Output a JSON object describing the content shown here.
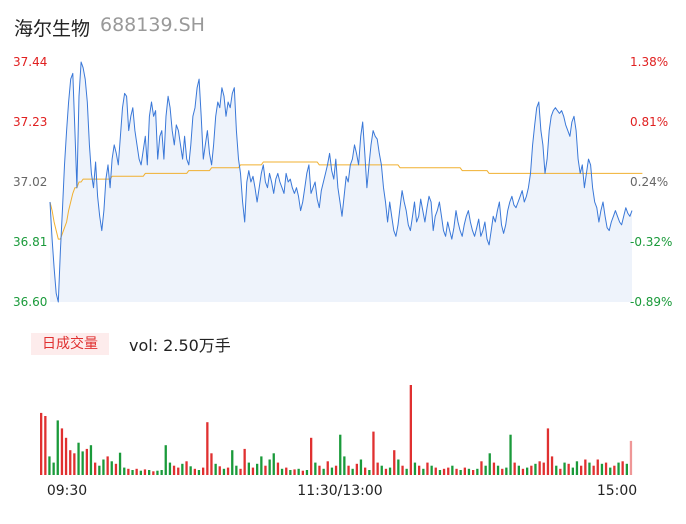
{
  "header": {
    "name": "海尔生物",
    "code": "688139.SH"
  },
  "volume": {
    "tab_label": "日成交量",
    "vol_text": "vol: 2.50万手"
  },
  "chart_data": {
    "type": "line",
    "prev_close": 36.93,
    "ylim": [
      36.6,
      37.44
    ],
    "price_ticks": [
      {
        "label": "37.44",
        "color": "#e02020"
      },
      {
        "label": "37.23",
        "color": "#e02020"
      },
      {
        "label": "37.02",
        "color": "#666666"
      },
      {
        "label": "36.81",
        "color": "#1a9a3a"
      },
      {
        "label": "36.60",
        "color": "#1a9a3a"
      }
    ],
    "pct_ticks": [
      {
        "label": "1.38%",
        "color": "#e02020"
      },
      {
        "label": "0.81%",
        "color": "#e02020"
      },
      {
        "label": "0.24%",
        "color": "#666666"
      },
      {
        "label": "-0.32%",
        "color": "#1a9a3a"
      },
      {
        "label": "-0.89%",
        "color": "#1a9a3a"
      }
    ],
    "x_labels": [
      "09:30",
      "11:30/13:00",
      "15:00"
    ],
    "colors": {
      "price_line": "#3a78d8",
      "avg_line": "#f0b030",
      "up": "#e03030",
      "down": "#1a9a3a",
      "fill": "#eef3fb"
    },
    "series": [
      {
        "key": "price",
        "values": [
          36.95,
          36.82,
          36.72,
          36.63,
          36.6,
          36.78,
          36.92,
          37.08,
          37.2,
          37.3,
          37.38,
          37.4,
          37.2,
          37.0,
          37.32,
          37.44,
          37.42,
          37.38,
          37.3,
          37.15,
          37.05,
          37.0,
          37.09,
          36.97,
          36.9,
          36.85,
          36.92,
          37.03,
          37.08,
          37.0,
          37.1,
          37.15,
          37.12,
          37.08,
          37.18,
          37.28,
          37.33,
          37.32,
          37.2,
          37.25,
          37.28,
          37.2,
          37.15,
          37.1,
          37.08,
          37.13,
          37.18,
          37.08,
          37.25,
          37.3,
          37.25,
          37.27,
          37.1,
          37.18,
          37.2,
          37.1,
          37.25,
          37.32,
          37.28,
          37.2,
          37.15,
          37.22,
          37.2,
          37.15,
          37.1,
          37.18,
          37.1,
          37.08,
          37.15,
          37.25,
          37.28,
          37.35,
          37.38,
          37.25,
          37.1,
          37.15,
          37.2,
          37.12,
          37.08,
          37.15,
          37.25,
          37.3,
          37.28,
          37.35,
          37.32,
          37.25,
          37.3,
          37.28,
          37.33,
          37.35,
          37.2,
          37.1,
          37.05,
          36.95,
          36.88,
          37.02,
          37.06,
          37.02,
          37.04,
          37.0,
          36.95,
          37.0,
          37.05,
          37.08,
          37.02,
          37.0,
          37.05,
          37.02,
          36.98,
          37.03,
          37.05,
          37.02,
          37.0,
          36.98,
          37.05,
          37.02,
          37.03,
          37.0,
          36.98,
          37.0,
          36.97,
          36.92,
          36.95,
          37.0,
          37.05,
          37.08,
          36.98,
          37.0,
          37.02,
          36.96,
          36.93,
          36.99,
          37.02,
          37.05,
          37.08,
          37.12,
          37.06,
          37.03,
          37.1,
          37.0,
          36.95,
          36.9,
          36.97,
          37.04,
          37.02,
          37.08,
          37.1,
          37.15,
          37.12,
          37.08,
          37.18,
          37.23,
          37.12,
          37.0,
          37.08,
          37.15,
          37.2,
          37.18,
          37.17,
          37.12,
          37.08,
          37.0,
          36.95,
          36.88,
          36.95,
          36.9,
          36.85,
          36.83,
          36.87,
          36.93,
          36.99,
          36.95,
          36.92,
          36.87,
          36.85,
          36.9,
          36.95,
          36.88,
          36.9,
          36.96,
          36.92,
          36.88,
          36.93,
          36.97,
          36.95,
          36.85,
          36.9,
          36.92,
          36.95,
          36.9,
          36.85,
          36.83,
          36.88,
          36.85,
          36.82,
          36.86,
          36.92,
          36.88,
          36.85,
          36.83,
          36.87,
          36.9,
          36.92,
          36.88,
          36.85,
          36.83,
          36.86,
          36.89,
          36.83,
          36.85,
          36.88,
          36.82,
          36.8,
          36.85,
          36.9,
          36.88,
          36.92,
          36.95,
          36.87,
          36.84,
          36.87,
          36.92,
          36.95,
          36.97,
          36.94,
          36.93,
          36.95,
          36.97,
          36.99,
          36.95,
          36.97,
          37.0,
          37.05,
          37.15,
          37.22,
          37.28,
          37.3,
          37.2,
          37.15,
          37.05,
          37.1,
          37.2,
          37.25,
          37.27,
          37.28,
          37.27,
          37.26,
          37.27,
          37.25,
          37.22,
          37.2,
          37.18,
          37.23,
          37.25,
          37.2,
          37.1,
          37.05,
          37.08,
          37.0,
          37.05,
          37.1,
          37.08,
          37.0,
          36.95,
          36.93,
          36.88,
          36.92,
          36.95,
          36.9,
          36.86,
          36.85,
          36.88,
          36.9,
          36.92,
          36.9,
          36.88,
          36.87,
          36.9,
          36.93,
          36.91,
          36.9,
          36.92
        ]
      },
      {
        "key": "avg",
        "values": [
          36.95,
          36.92,
          36.88,
          36.85,
          36.82,
          36.82,
          36.84,
          36.86,
          36.88,
          36.92,
          36.95,
          36.98,
          37.0,
          37.0,
          37.02,
          37.02,
          37.03,
          37.03,
          37.03,
          37.03,
          37.03,
          37.03,
          37.03,
          37.03,
          37.03,
          37.03,
          37.03,
          37.03,
          37.03,
          37.03,
          37.04,
          37.04,
          37.04,
          37.04,
          37.04,
          37.04,
          37.04,
          37.04,
          37.04,
          37.04,
          37.04,
          37.04,
          37.04,
          37.04,
          37.04,
          37.04,
          37.05,
          37.05,
          37.05,
          37.05,
          37.05,
          37.05,
          37.05,
          37.05,
          37.05,
          37.05,
          37.05,
          37.05,
          37.05,
          37.05,
          37.05,
          37.05,
          37.05,
          37.05,
          37.05,
          37.05,
          37.05,
          37.06,
          37.06,
          37.06,
          37.06,
          37.06,
          37.06,
          37.06,
          37.06,
          37.06,
          37.06,
          37.06,
          37.07,
          37.07,
          37.07,
          37.07,
          37.07,
          37.07,
          37.07,
          37.07,
          37.07,
          37.07,
          37.07,
          37.07,
          37.07,
          37.07,
          37.08,
          37.08,
          37.08,
          37.08,
          37.08,
          37.08,
          37.08,
          37.08,
          37.08,
          37.08,
          37.08,
          37.09,
          37.09,
          37.09,
          37.09,
          37.09,
          37.09,
          37.09,
          37.09,
          37.09,
          37.09,
          37.09,
          37.09,
          37.09,
          37.09,
          37.09,
          37.09,
          37.09,
          37.09,
          37.09,
          37.09,
          37.09,
          37.09,
          37.09,
          37.09,
          37.09,
          37.09,
          37.09,
          37.08,
          37.08,
          37.08,
          37.08,
          37.08,
          37.08,
          37.08,
          37.08,
          37.08,
          37.08,
          37.08,
          37.08,
          37.08,
          37.08,
          37.08,
          37.08,
          37.08,
          37.08,
          37.08,
          37.08,
          37.08,
          37.08,
          37.08,
          37.08,
          37.08,
          37.08,
          37.08,
          37.08,
          37.08,
          37.08,
          37.08,
          37.08,
          37.08,
          37.08,
          37.08,
          37.08,
          37.08,
          37.08,
          37.08,
          37.07,
          37.07,
          37.07,
          37.07,
          37.07,
          37.07,
          37.07,
          37.07,
          37.07,
          37.07,
          37.07,
          37.07,
          37.07,
          37.07,
          37.07,
          37.07,
          37.07,
          37.07,
          37.07,
          37.07,
          37.07,
          37.07,
          37.07,
          37.07,
          37.07,
          37.07,
          37.07,
          37.07,
          37.07,
          37.07,
          37.06,
          37.06,
          37.06,
          37.06,
          37.06,
          37.06,
          37.06,
          37.06,
          37.06,
          37.06,
          37.06,
          37.06,
          37.06,
          37.05,
          37.05,
          37.05,
          37.05,
          37.05,
          37.05,
          37.05,
          37.05,
          37.05,
          37.05,
          37.05,
          37.05,
          37.05,
          37.05,
          37.05,
          37.05,
          37.05,
          37.05,
          37.05,
          37.05,
          37.05,
          37.05,
          37.05,
          37.05,
          37.05,
          37.05,
          37.05,
          37.05,
          37.05,
          37.05,
          37.05,
          37.05,
          37.05,
          37.05,
          37.05,
          37.05,
          37.05,
          37.05,
          37.05,
          37.05,
          37.05,
          37.05,
          37.05,
          37.05,
          37.05,
          37.05,
          37.05,
          37.05,
          37.05,
          37.05,
          37.05,
          37.05,
          37.05,
          37.05,
          37.05,
          37.05,
          37.05,
          37.05,
          37.05,
          37.05,
          37.05,
          37.05,
          37.05,
          37.05,
          37.05,
          37.05,
          37.05,
          37.05,
          37.05,
          37.05,
          37.05,
          37.05,
          37.05,
          37.05,
          37.05
        ]
      }
    ],
    "volume_bars": [
      {
        "v": 100,
        "d": "up"
      },
      {
        "v": 95,
        "d": "up"
      },
      {
        "v": 30,
        "d": "down"
      },
      {
        "v": 20,
        "d": "down"
      },
      {
        "v": 88,
        "d": "down"
      },
      {
        "v": 75,
        "d": "up"
      },
      {
        "v": 60,
        "d": "up"
      },
      {
        "v": 40,
        "d": "up"
      },
      {
        "v": 35,
        "d": "up"
      },
      {
        "v": 52,
        "d": "down"
      },
      {
        "v": 38,
        "d": "down"
      },
      {
        "v": 42,
        "d": "up"
      },
      {
        "v": 48,
        "d": "down"
      },
      {
        "v": 20,
        "d": "up"
      },
      {
        "v": 15,
        "d": "down"
      },
      {
        "v": 25,
        "d": "down"
      },
      {
        "v": 30,
        "d": "up"
      },
      {
        "v": 22,
        "d": "down"
      },
      {
        "v": 18,
        "d": "up"
      },
      {
        "v": 36,
        "d": "down"
      },
      {
        "v": 12,
        "d": "down"
      },
      {
        "v": 10,
        "d": "up"
      },
      {
        "v": 8,
        "d": "down"
      },
      {
        "v": 10,
        "d": "up"
      },
      {
        "v": 7,
        "d": "down"
      },
      {
        "v": 9,
        "d": "up"
      },
      {
        "v": 8,
        "d": "down"
      },
      {
        "v": 6,
        "d": "up"
      },
      {
        "v": 7,
        "d": "down"
      },
      {
        "v": 8,
        "d": "down"
      },
      {
        "v": 48,
        "d": "down"
      },
      {
        "v": 20,
        "d": "down"
      },
      {
        "v": 15,
        "d": "up"
      },
      {
        "v": 12,
        "d": "up"
      },
      {
        "v": 18,
        "d": "down"
      },
      {
        "v": 22,
        "d": "up"
      },
      {
        "v": 14,
        "d": "down"
      },
      {
        "v": 10,
        "d": "up"
      },
      {
        "v": 8,
        "d": "down"
      },
      {
        "v": 12,
        "d": "up"
      },
      {
        "v": 85,
        "d": "up"
      },
      {
        "v": 35,
        "d": "up"
      },
      {
        "v": 18,
        "d": "down"
      },
      {
        "v": 14,
        "d": "up"
      },
      {
        "v": 10,
        "d": "down"
      },
      {
        "v": 12,
        "d": "up"
      },
      {
        "v": 40,
        "d": "down"
      },
      {
        "v": 15,
        "d": "down"
      },
      {
        "v": 10,
        "d": "up"
      },
      {
        "v": 42,
        "d": "up"
      },
      {
        "v": 20,
        "d": "down"
      },
      {
        "v": 12,
        "d": "up"
      },
      {
        "v": 18,
        "d": "down"
      },
      {
        "v": 30,
        "d": "down"
      },
      {
        "v": 15,
        "d": "up"
      },
      {
        "v": 25,
        "d": "down"
      },
      {
        "v": 35,
        "d": "down"
      },
      {
        "v": 20,
        "d": "up"
      },
      {
        "v": 10,
        "d": "down"
      },
      {
        "v": 12,
        "d": "up"
      },
      {
        "v": 8,
        "d": "down"
      },
      {
        "v": 9,
        "d": "up"
      },
      {
        "v": 10,
        "d": "down"
      },
      {
        "v": 7,
        "d": "up"
      },
      {
        "v": 8,
        "d": "down"
      },
      {
        "v": 60,
        "d": "up"
      },
      {
        "v": 20,
        "d": "down"
      },
      {
        "v": 15,
        "d": "up"
      },
      {
        "v": 10,
        "d": "down"
      },
      {
        "v": 22,
        "d": "up"
      },
      {
        "v": 12,
        "d": "down"
      },
      {
        "v": 15,
        "d": "up"
      },
      {
        "v": 65,
        "d": "down"
      },
      {
        "v": 30,
        "d": "down"
      },
      {
        "v": 15,
        "d": "up"
      },
      {
        "v": 10,
        "d": "down"
      },
      {
        "v": 18,
        "d": "up"
      },
      {
        "v": 25,
        "d": "down"
      },
      {
        "v": 12,
        "d": "up"
      },
      {
        "v": 8,
        "d": "down"
      },
      {
        "v": 70,
        "d": "up"
      },
      {
        "v": 20,
        "d": "up"
      },
      {
        "v": 15,
        "d": "down"
      },
      {
        "v": 10,
        "d": "up"
      },
      {
        "v": 12,
        "d": "down"
      },
      {
        "v": 40,
        "d": "up"
      },
      {
        "v": 25,
        "d": "down"
      },
      {
        "v": 15,
        "d": "up"
      },
      {
        "v": 10,
        "d": "down"
      },
      {
        "v": 145,
        "d": "up"
      },
      {
        "v": 20,
        "d": "down"
      },
      {
        "v": 15,
        "d": "up"
      },
      {
        "v": 10,
        "d": "down"
      },
      {
        "v": 20,
        "d": "up"
      },
      {
        "v": 15,
        "d": "down"
      },
      {
        "v": 12,
        "d": "up"
      },
      {
        "v": 8,
        "d": "down"
      },
      {
        "v": 10,
        "d": "up"
      },
      {
        "v": 12,
        "d": "up"
      },
      {
        "v": 15,
        "d": "down"
      },
      {
        "v": 10,
        "d": "up"
      },
      {
        "v": 8,
        "d": "down"
      },
      {
        "v": 12,
        "d": "up"
      },
      {
        "v": 10,
        "d": "down"
      },
      {
        "v": 8,
        "d": "up"
      },
      {
        "v": 10,
        "d": "down"
      },
      {
        "v": 22,
        "d": "up"
      },
      {
        "v": 15,
        "d": "down"
      },
      {
        "v": 35,
        "d": "down"
      },
      {
        "v": 20,
        "d": "up"
      },
      {
        "v": 15,
        "d": "down"
      },
      {
        "v": 10,
        "d": "up"
      },
      {
        "v": 12,
        "d": "down"
      },
      {
        "v": 65,
        "d": "down"
      },
      {
        "v": 20,
        "d": "up"
      },
      {
        "v": 15,
        "d": "down"
      },
      {
        "v": 10,
        "d": "up"
      },
      {
        "v": 12,
        "d": "down"
      },
      {
        "v": 15,
        "d": "up"
      },
      {
        "v": 18,
        "d": "down"
      },
      {
        "v": 22,
        "d": "up"
      },
      {
        "v": 20,
        "d": "up"
      },
      {
        "v": 75,
        "d": "up"
      },
      {
        "v": 30,
        "d": "up"
      },
      {
        "v": 15,
        "d": "down"
      },
      {
        "v": 10,
        "d": "up"
      },
      {
        "v": 20,
        "d": "down"
      },
      {
        "v": 18,
        "d": "up"
      },
      {
        "v": 12,
        "d": "down"
      },
      {
        "v": 22,
        "d": "down"
      },
      {
        "v": 15,
        "d": "up"
      },
      {
        "v": 25,
        "d": "up"
      },
      {
        "v": 20,
        "d": "down"
      },
      {
        "v": 15,
        "d": "up"
      },
      {
        "v": 25,
        "d": "up"
      },
      {
        "v": 18,
        "d": "down"
      },
      {
        "v": 20,
        "d": "up"
      },
      {
        "v": 12,
        "d": "down"
      },
      {
        "v": 15,
        "d": "up"
      },
      {
        "v": 20,
        "d": "down"
      },
      {
        "v": 22,
        "d": "up"
      },
      {
        "v": 18,
        "d": "down"
      },
      {
        "v": 55,
        "d": "up"
      }
    ]
  }
}
